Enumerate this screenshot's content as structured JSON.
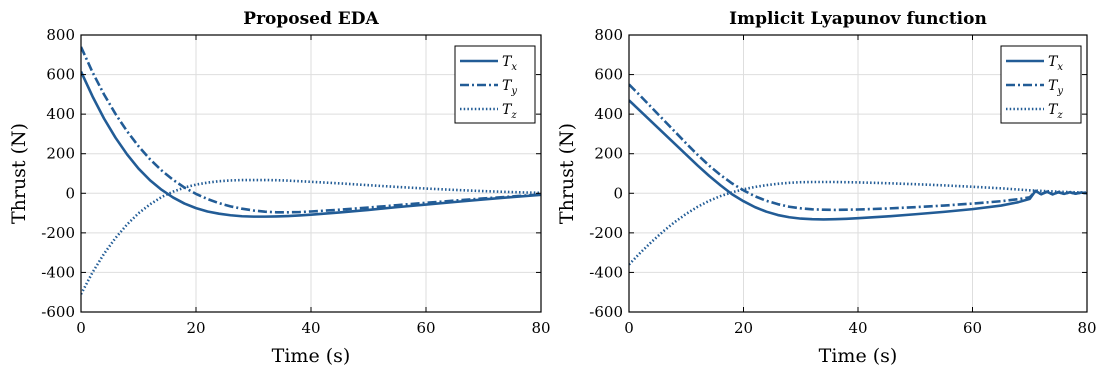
{
  "chart_data": [
    {
      "type": "line",
      "title": "Proposed EDA",
      "xlabel": "Time (s)",
      "ylabel": "Thrust (N)",
      "xlim": [
        0,
        80
      ],
      "ylim": [
        -600,
        800
      ],
      "xticks": [
        0,
        20,
        40,
        60,
        80
      ],
      "yticks": [
        -600,
        -400,
        -200,
        0,
        200,
        400,
        600,
        800
      ],
      "grid": true,
      "legend_position": "top-right",
      "series": [
        {
          "name": "T",
          "subscript": "x",
          "style": "solid",
          "x": [
            0,
            2,
            4,
            6,
            8,
            10,
            12,
            14,
            16,
            18,
            20,
            22,
            24,
            26,
            28,
            30,
            32,
            34,
            36,
            38,
            40,
            45,
            50,
            55,
            60,
            65,
            70,
            75,
            80
          ],
          "y": [
            615,
            490,
            378,
            281,
            197,
            125,
            66,
            18,
            -21,
            -52,
            -75,
            -92,
            -103,
            -111,
            -116,
            -118,
            -118,
            -117,
            -115,
            -112,
            -108,
            -97,
            -84,
            -70,
            -57,
            -44,
            -31,
            -19,
            -8
          ]
        },
        {
          "name": "T",
          "subscript": "y",
          "style": "dashdot",
          "x": [
            0,
            2,
            4,
            6,
            8,
            10,
            12,
            14,
            16,
            18,
            20,
            22,
            24,
            26,
            28,
            30,
            32,
            34,
            36,
            38,
            40,
            45,
            50,
            55,
            60,
            65,
            70,
            75,
            80
          ],
          "y": [
            740,
            612,
            500,
            401,
            314,
            238,
            172,
            116,
            68,
            29,
            -3,
            -29,
            -50,
            -66,
            -78,
            -87,
            -93,
            -96,
            -96,
            -95,
            -92,
            -83,
            -72,
            -60,
            -48,
            -37,
            -26,
            -16,
            -6
          ]
        },
        {
          "name": "T",
          "subscript": "z",
          "style": "dotted",
          "x": [
            0,
            2,
            4,
            6,
            8,
            10,
            12,
            14,
            16,
            18,
            20,
            22,
            24,
            26,
            28,
            30,
            32,
            34,
            36,
            38,
            40,
            45,
            50,
            55,
            60,
            65,
            70,
            75,
            80
          ],
          "y": [
            -510,
            -400,
            -306,
            -226,
            -158,
            -101,
            -56,
            -19,
            8,
            29,
            44,
            54,
            61,
            65,
            67,
            67,
            67,
            66,
            64,
            61,
            58,
            50,
            41,
            32,
            24,
            17,
            11,
            6,
            2
          ]
        }
      ]
    },
    {
      "type": "line",
      "title": "Implicit Lyapunov function",
      "xlabel": "Time (s)",
      "ylabel": "Thrust (N)",
      "xlim": [
        0,
        80
      ],
      "ylim": [
        -600,
        800
      ],
      "xticks": [
        0,
        20,
        40,
        60,
        80
      ],
      "yticks": [
        -600,
        -400,
        -200,
        0,
        200,
        400,
        600,
        800
      ],
      "grid": true,
      "legend_position": "top-right",
      "series": [
        {
          "name": "T",
          "subscript": "x",
          "style": "solid",
          "x": [
            0,
            2,
            4,
            6,
            8,
            10,
            12,
            14,
            16,
            18,
            20,
            22,
            24,
            26,
            28,
            30,
            32,
            34,
            36,
            38,
            40,
            45,
            50,
            55,
            60,
            65,
            68,
            70,
            71,
            72,
            73,
            74,
            75,
            76,
            77,
            78,
            79,
            80
          ],
          "y": [
            470,
            415,
            360,
            305,
            250,
            195,
            140,
            88,
            40,
            -5,
            -40,
            -70,
            -93,
            -110,
            -121,
            -128,
            -131,
            -132,
            -131,
            -129,
            -126,
            -117,
            -106,
            -94,
            -80,
            -62,
            -45,
            -28,
            12,
            -5,
            8,
            -6,
            6,
            -3,
            5,
            -2,
            4,
            0
          ]
        },
        {
          "name": "T",
          "subscript": "y",
          "style": "dashdot",
          "x": [
            0,
            2,
            4,
            6,
            8,
            10,
            12,
            14,
            16,
            18,
            20,
            22,
            24,
            26,
            28,
            30,
            32,
            34,
            36,
            38,
            40,
            45,
            50,
            55,
            60,
            65,
            68,
            70,
            71,
            72,
            73,
            74,
            75,
            76,
            77,
            78,
            79,
            80
          ],
          "y": [
            550,
            492,
            432,
            372,
            312,
            252,
            194,
            140,
            92,
            50,
            15,
            -15,
            -38,
            -55,
            -68,
            -76,
            -81,
            -83,
            -84,
            -83,
            -82,
            -77,
            -70,
            -62,
            -52,
            -40,
            -30,
            -20,
            10,
            -4,
            7,
            -5,
            5,
            -2,
            4,
            -1,
            3,
            0
          ]
        },
        {
          "name": "T",
          "subscript": "z",
          "style": "dotted",
          "x": [
            0,
            2,
            4,
            6,
            8,
            10,
            12,
            14,
            16,
            18,
            20,
            22,
            24,
            26,
            28,
            30,
            32,
            34,
            36,
            38,
            40,
            45,
            50,
            55,
            60,
            65,
            70,
            75,
            80
          ],
          "y": [
            -360,
            -300,
            -244,
            -192,
            -145,
            -104,
            -68,
            -38,
            -14,
            5,
            20,
            32,
            41,
            48,
            53,
            56,
            57,
            57,
            57,
            56,
            55,
            51,
            46,
            40,
            33,
            25,
            15,
            8,
            3
          ]
        }
      ]
    }
  ]
}
